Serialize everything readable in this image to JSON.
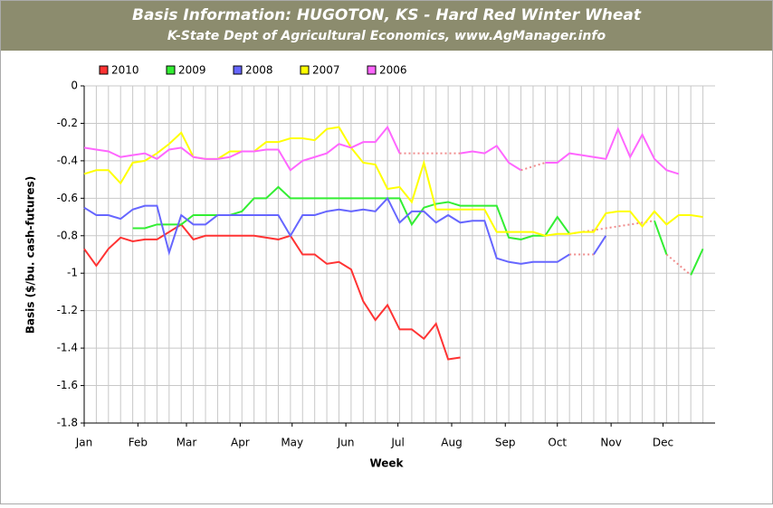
{
  "chart_data": {
    "type": "line",
    "title": "Basis Information: HUGOTON, KS - Hard Red Winter Wheat",
    "subtitle": "K-State Dept of Agricultural Economics, www.AgManager.info",
    "x_label": "Week",
    "y_label": "Basis ($/bu. cash-futures)",
    "x": [
      1,
      2,
      3,
      4,
      5,
      6,
      7,
      8,
      9,
      10,
      11,
      12,
      13,
      14,
      15,
      16,
      17,
      18,
      19,
      20,
      21,
      22,
      23,
      24,
      25,
      26,
      27,
      28,
      29,
      30,
      31,
      32,
      33,
      34,
      35,
      36,
      37,
      38,
      39,
      40,
      41,
      42,
      43,
      44,
      45,
      46,
      47,
      48,
      49,
      50,
      51,
      52
    ],
    "xlim": [
      1,
      53
    ],
    "xticks": [
      {
        "value": 1,
        "label": "Jan"
      },
      {
        "value": 5.43,
        "label": "Feb"
      },
      {
        "value": 9.43,
        "label": "Mar"
      },
      {
        "value": 13.86,
        "label": "Apr"
      },
      {
        "value": 18.14,
        "label": "May"
      },
      {
        "value": 22.57,
        "label": "Jun"
      },
      {
        "value": 26.86,
        "label": "Jul"
      },
      {
        "value": 31.29,
        "label": "Aug"
      },
      {
        "value": 35.71,
        "label": "Sep"
      },
      {
        "value": 40,
        "label": "Oct"
      },
      {
        "value": 44.43,
        "label": "Nov"
      },
      {
        "value": 48.71,
        "label": "Dec"
      }
    ],
    "ylim": [
      -1.8,
      0
    ],
    "yticks": [
      {
        "value": -1.8,
        "label": "-1.8"
      },
      {
        "value": -1.6,
        "label": "-1.6"
      },
      {
        "value": -1.4,
        "label": "-1.4"
      },
      {
        "value": -1.2,
        "label": "-1.2"
      },
      -1,
      {
        "value": -0.8,
        "label": "-0.8"
      },
      {
        "value": -0.6,
        "label": "-0.6"
      },
      {
        "value": -0.4,
        "label": "-0.4"
      },
      {
        "value": -0.2,
        "label": "-0.2"
      },
      0
    ],
    "grid": true,
    "gap_style": "dotted",
    "gap_color": "#f08c8c",
    "legend": "top",
    "series": [
      {
        "name": "2010",
        "color": "#ff3333",
        "values": [
          -0.87,
          -0.96,
          -0.87,
          -0.81,
          -0.83,
          -0.82,
          -0.82,
          -0.78,
          -0.74,
          -0.82,
          -0.8,
          -0.8,
          -0.8,
          -0.8,
          -0.8,
          -0.81,
          -0.82,
          -0.8,
          -0.9,
          -0.9,
          -0.95,
          -0.94,
          -0.98,
          -1.15,
          -1.25,
          -1.17,
          -1.3,
          -1.3,
          -1.35,
          -1.27,
          -1.46,
          -1.45,
          null,
          null,
          null,
          null,
          null,
          null,
          null,
          null,
          null,
          null,
          null,
          null,
          null,
          null,
          null,
          null,
          null,
          null,
          null,
          null
        ]
      },
      {
        "name": "2009",
        "color": "#33ee33",
        "values": [
          null,
          null,
          null,
          null,
          -0.76,
          -0.76,
          -0.74,
          -0.74,
          -0.74,
          -0.69,
          -0.69,
          -0.69,
          -0.69,
          -0.67,
          -0.6,
          -0.6,
          -0.54,
          -0.6,
          -0.6,
          -0.6,
          -0.6,
          -0.6,
          -0.6,
          -0.6,
          -0.6,
          -0.6,
          -0.6,
          -0.74,
          -0.65,
          -0.63,
          -0.62,
          -0.64,
          -0.64,
          -0.64,
          -0.64,
          -0.81,
          -0.82,
          -0.8,
          -0.8,
          -0.7,
          -0.79,
          null,
          null,
          null,
          null,
          null,
          null,
          -0.72,
          -0.9,
          null,
          -1.01,
          -0.87
        ]
      },
      {
        "name": "2008",
        "color": "#6666ff",
        "values": [
          -0.65,
          -0.69,
          -0.69,
          -0.71,
          -0.66,
          -0.64,
          -0.64,
          -0.89,
          -0.69,
          -0.74,
          -0.74,
          -0.69,
          -0.69,
          -0.69,
          -0.69,
          -0.69,
          -0.69,
          -0.8,
          -0.69,
          -0.69,
          -0.67,
          -0.66,
          -0.67,
          -0.66,
          -0.67,
          -0.6,
          -0.73,
          -0.67,
          -0.67,
          -0.73,
          -0.69,
          -0.73,
          -0.72,
          -0.72,
          -0.92,
          -0.94,
          -0.95,
          -0.94,
          -0.94,
          -0.94,
          -0.9,
          null,
          -0.9,
          -0.8,
          null,
          null,
          null,
          null,
          null,
          null,
          null,
          null
        ]
      },
      {
        "name": "2007",
        "color": "#ffff00",
        "values": [
          -0.47,
          -0.45,
          -0.45,
          -0.52,
          -0.41,
          -0.4,
          -0.36,
          -0.31,
          -0.25,
          -0.38,
          -0.39,
          -0.39,
          -0.35,
          -0.35,
          -0.35,
          -0.3,
          -0.3,
          -0.28,
          -0.28,
          -0.29,
          -0.23,
          -0.22,
          -0.33,
          -0.41,
          -0.42,
          -0.55,
          -0.54,
          -0.62,
          -0.41,
          -0.66,
          -0.66,
          -0.66,
          -0.66,
          -0.66,
          -0.78,
          -0.78,
          -0.78,
          -0.78,
          -0.8,
          -0.79,
          -0.79,
          -0.78,
          -0.78,
          -0.68,
          -0.67,
          -0.67,
          -0.75,
          -0.67,
          -0.74,
          -0.69,
          -0.69,
          -0.7
        ]
      },
      {
        "name": "2006",
        "color": "#ff66ff",
        "values": [
          -0.33,
          -0.34,
          -0.35,
          -0.38,
          -0.37,
          -0.36,
          -0.39,
          -0.34,
          -0.33,
          -0.38,
          -0.39,
          -0.39,
          -0.38,
          -0.35,
          -0.35,
          -0.34,
          -0.34,
          -0.45,
          -0.4,
          -0.38,
          -0.36,
          -0.31,
          -0.33,
          -0.3,
          -0.3,
          -0.22,
          -0.36,
          null,
          null,
          null,
          null,
          -0.36,
          -0.35,
          -0.36,
          -0.32,
          -0.41,
          -0.45,
          null,
          -0.41,
          -0.41,
          -0.36,
          -0.37,
          -0.38,
          -0.39,
          -0.23,
          -0.38,
          -0.26,
          -0.39,
          -0.45,
          -0.47,
          null,
          null
        ]
      }
    ]
  }
}
